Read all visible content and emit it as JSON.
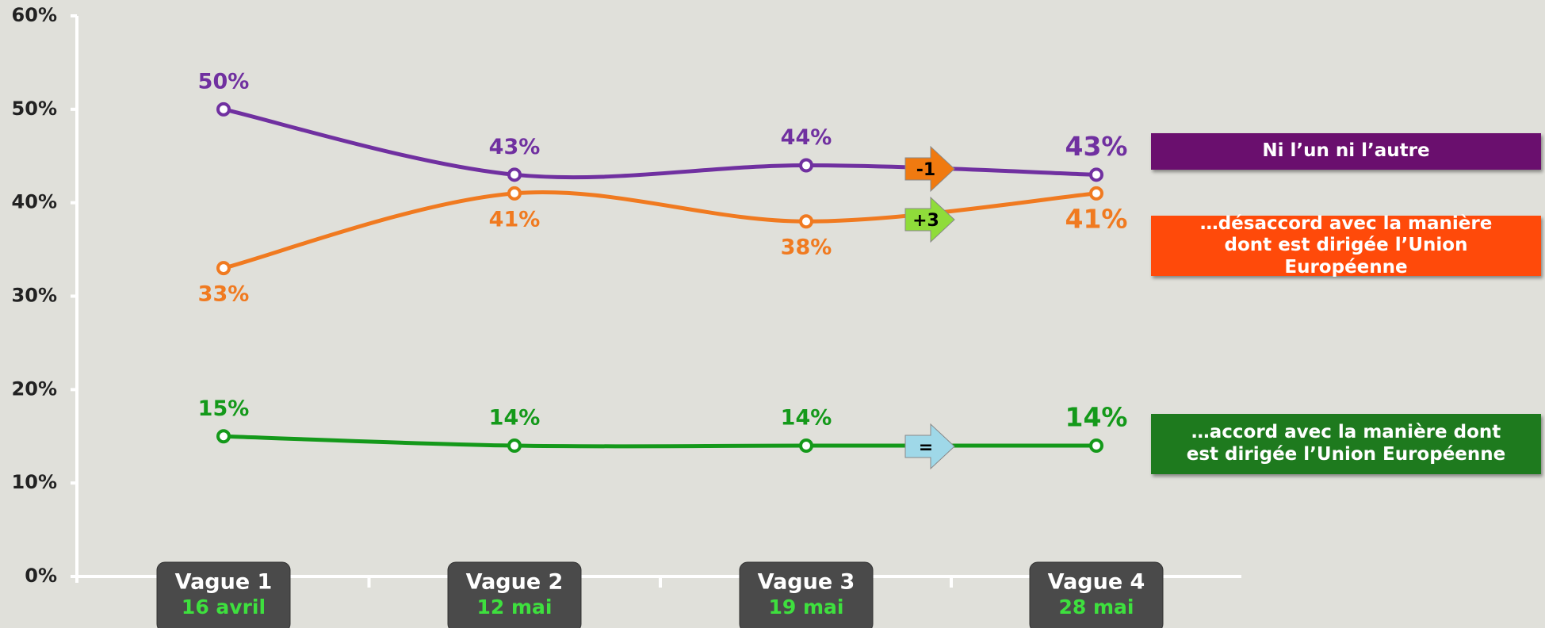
{
  "chart_data": {
    "type": "line",
    "categories": [
      "Vague 1",
      "Vague 2",
      "Vague 3",
      "Vague 4"
    ],
    "dates": [
      "16 avril",
      "12 mai",
      "19 mai",
      "28 mai"
    ],
    "ylim": [
      0,
      60
    ],
    "yticks": [
      {
        "value": 0,
        "label": "0%"
      },
      {
        "value": 10,
        "label": "10%"
      },
      {
        "value": 20,
        "label": "20%"
      },
      {
        "value": 30,
        "label": "30%"
      },
      {
        "value": 40,
        "label": "40%"
      },
      {
        "value": 50,
        "label": "50%"
      },
      {
        "value": 60,
        "label": "60%"
      }
    ],
    "legend": "right",
    "series": [
      {
        "name": "Ni l’un ni l’autre",
        "color": "#7030a0",
        "legend_color": "#6a0f6e",
        "values": [
          50,
          43,
          44,
          43
        ],
        "value_labels": [
          "50%",
          "43%",
          "44%",
          "43%"
        ],
        "change": "-1",
        "change_color": "#f07a10"
      },
      {
        "name": "…désaccord avec la manière dont est dirigée l’Union Européenne",
        "color": "#f07a20",
        "legend_color": "#ff4a0a",
        "values": [
          33,
          41,
          38,
          41
        ],
        "value_labels": [
          "33%",
          "41%",
          "38%",
          "41%"
        ],
        "change": "+3",
        "change_color": "#8fdc3a"
      },
      {
        "name": "…accord avec la manière dont est dirigée l’Union Européenne",
        "color": "#14991a",
        "legend_color": "#1e7a1e",
        "values": [
          15,
          14,
          14,
          14
        ],
        "value_labels": [
          "15%",
          "14%",
          "14%",
          "14%"
        ],
        "change": "=",
        "change_color": "#9fd8e8"
      }
    ]
  }
}
